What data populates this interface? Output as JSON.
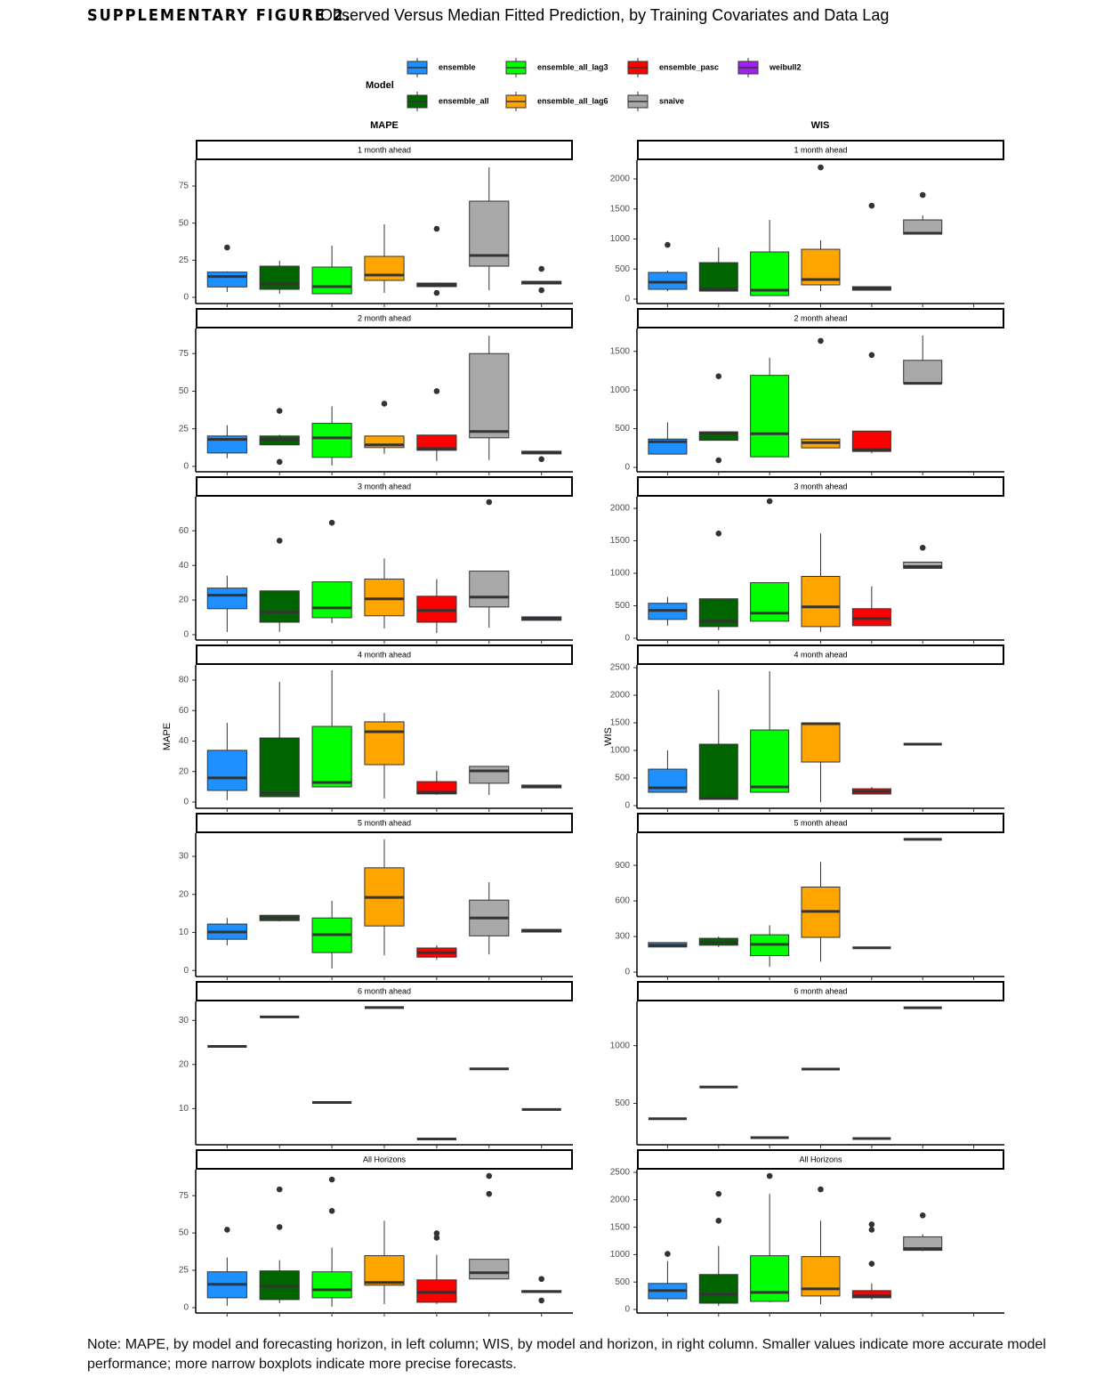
{
  "header": {
    "label": "SUPPLEMENTARY FIGURE 2.",
    "title": "Observed Versus Median Fitted Prediction, by Training Covariates and Data Lag"
  },
  "legend_title": "Model",
  "models": [
    {
      "name": "ensemble",
      "color": "#1e90ff"
    },
    {
      "name": "ensemble_all",
      "color": "#006400"
    },
    {
      "name": "ensemble_all_lag3",
      "color": "#00ff00"
    },
    {
      "name": "ensemble_all_lag6",
      "color": "#ffa500"
    },
    {
      "name": "ensemble_pasc",
      "color": "#ff0000"
    },
    {
      "name": "snaive",
      "color": "#a9a9a9"
    },
    {
      "name": "weibull2",
      "color": "#a020f0"
    }
  ],
  "column_titles": [
    "MAPE",
    "WIS"
  ],
  "chart_data": [
    {
      "type": "box",
      "title": "1 month ahead",
      "ylim": [
        -4.2,
        92.4
      ],
      "yticks": [
        0,
        25,
        50,
        75
      ],
      "boxes": [
        [
          3.6,
          7,
          14,
          17,
          17.5
        ],
        [
          2.4,
          5.4,
          9,
          21,
          24.6
        ],
        [
          2.4,
          2.4,
          7.2,
          20.4,
          34.8
        ],
        [
          3,
          11.4,
          15,
          27.6,
          49.2
        ],
        [
          7,
          7.2,
          8.4,
          9.6,
          10
        ],
        [
          4.8,
          21,
          28.2,
          64.8,
          87.6
        ],
        [
          9,
          9,
          10.2,
          10.8,
          10.8
        ]
      ],
      "outliers": [
        [
          33.6
        ],
        [],
        [],
        [],
        [
          46.2,
          3
        ],
        [],
        [
          19.2,
          4.8
        ]
      ]
    },
    {
      "type": "box",
      "title": "1 month ahead",
      "ylim": [
        -74,
        2311
      ],
      "yticks": [
        0,
        500,
        1000,
        1500,
        2000
      ],
      "boxes": [
        [
          133,
          163,
          281,
          444,
          474
        ],
        [
          133,
          133,
          163,
          607,
          859
        ],
        [
          59,
          59,
          148,
          785,
          1318
        ],
        [
          133,
          237,
          326,
          829,
          977
        ],
        [
          148,
          148,
          178,
          207,
          207
        ],
        [
          1081,
          1081,
          1096,
          1318,
          1392
        ],
        null
      ],
      "outliers": [
        [
          903
        ],
        [],
        [],
        [
          2192
        ],
        [
          1555
        ],
        [
          1733
        ],
        []
      ]
    },
    {
      "type": "box",
      "title": "2 month ahead",
      "ylim": [
        -3.6,
        91.7
      ],
      "yticks": [
        0,
        25,
        50,
        75
      ],
      "boxes": [
        [
          5.4,
          8.9,
          17.9,
          20.2,
          27.4
        ],
        [
          14.3,
          14.3,
          17.9,
          20.2,
          21
        ],
        [
          0.6,
          6,
          19,
          28.6,
          39.9
        ],
        [
          8.3,
          12.5,
          14.3,
          20.2,
          20.2
        ],
        [
          3.6,
          10.7,
          11.9,
          20.8,
          20.8
        ],
        [
          4.2,
          19,
          23.2,
          75,
          86.9
        ],
        [
          8.3,
          8.3,
          9.5,
          10,
          10
        ]
      ],
      "outliers": [
        [],
        [
          36.9,
          3
        ],
        [],
        [
          41.7
        ],
        [
          50
        ],
        [],
        [
          4.8
        ]
      ]
    },
    {
      "type": "box",
      "title": "2 month ahead",
      "ylim": [
        -57,
        1796
      ],
      "yticks": [
        0,
        500,
        1000,
        1500
      ],
      "boxes": [
        [
          172,
          172,
          332,
          366,
          583
        ],
        [
          350,
          350,
          440,
          460,
          460
        ],
        [
          137,
          137,
          435,
          1190,
          1419
        ],
        [
          252,
          252,
          320,
          366,
          366
        ],
        [
          183,
          206,
          229,
          469,
          469
        ],
        [
          1087,
          1087,
          1087,
          1384,
          1705
        ],
        null
      ],
      "outliers": [
        [],
        [
          1178,
          92
        ],
        [],
        [
          1636
        ],
        [
          1453
        ],
        [],
        []
      ]
    },
    {
      "type": "box",
      "title": "3 month ahead",
      "ylim": [
        -3.1,
        79.7
      ],
      "yticks": [
        0,
        20,
        40,
        60
      ],
      "boxes": [
        [
          1.6,
          15,
          22.8,
          26.9,
          34.1
        ],
        [
          1.6,
          7.2,
          12.9,
          25.3,
          25.3
        ],
        [
          6.7,
          9.8,
          15.5,
          30.5,
          30.5
        ],
        [
          3.6,
          10.9,
          20.7,
          32.1,
          44
        ],
        [
          1,
          7.2,
          14,
          22.2,
          32.1
        ],
        [
          4.1,
          16,
          21.7,
          36.7,
          36.7
        ],
        [
          8.3,
          8.3,
          9.3,
          10.3,
          10.3
        ]
      ],
      "outliers": [
        [],
        [
          54.3
        ],
        [
          64.7
        ],
        [],
        [],
        [
          76.6
        ],
        []
      ]
    },
    {
      "type": "box",
      "title": "3 month ahead",
      "ylim": [
        -28,
        2179
      ],
      "yticks": [
        0,
        500,
        1000,
        1500,
        2000
      ],
      "boxes": [
        [
          193,
          290,
          427,
          538,
          634
        ],
        [
          124,
          179,
          262,
          607,
          607
        ],
        [
          262,
          262,
          386,
          855,
          855
        ],
        [
          97,
          179,
          483,
          952,
          1613
        ],
        [
          193,
          193,
          303,
          455,
          800
        ],
        [
          1076,
          1076,
          1103,
          1172,
          1172
        ],
        null
      ],
      "outliers": [
        [],
        [
          1613
        ],
        [
          2110
        ],
        [],
        [],
        [
          1393
        ],
        []
      ]
    },
    {
      "type": "box",
      "title": "4 month ahead",
      "ylabel": "MAPE",
      "ylim": [
        -4.1,
        89.9
      ],
      "yticks": [
        0,
        20,
        40,
        60,
        80
      ],
      "boxes": [
        [
          1.2,
          7.6,
          15.8,
          33.9,
          52
        ],
        [
          3.5,
          3.5,
          5.8,
          42,
          78.8
        ],
        [
          9.9,
          9.9,
          12.8,
          49.6,
          86.4
        ],
        [
          2.3,
          24.5,
          46.1,
          52.6,
          58.4
        ],
        [
          4.7,
          5.3,
          6.4,
          13.4,
          20.4
        ],
        [
          4.7,
          12.3,
          20.4,
          23.4,
          23.4
        ],
        [
          9.3,
          9.3,
          9.9,
          11.1,
          11.1
        ]
      ],
      "outliers": [
        [],
        [],
        [],
        [],
        [],
        [],
        []
      ]
    },
    {
      "type": "box",
      "title": "4 month ahead",
      "ylabel": "WIS",
      "ylim": [
        -48,
        2549
      ],
      "yticks": [
        0,
        500,
        1000,
        1500,
        2000,
        2500
      ],
      "boxes": [
        [
          242,
          242,
          323,
          661,
          1000
        ],
        [
          113,
          113,
          129,
          1113,
          2097
        ],
        [
          242,
          242,
          339,
          1371,
          2436
        ],
        [
          65,
          790,
          1484,
          1500,
          1500
        ],
        [
          210,
          210,
          258,
          306,
          339
        ],
        [
          1113,
          1113,
          1113,
          1113,
          1113
        ],
        null
      ],
      "outliers": [
        [],
        [],
        [],
        [],
        [],
        [],
        []
      ]
    },
    {
      "type": "box",
      "title": "5 month ahead",
      "ylim": [
        -1.6,
        36.1
      ],
      "yticks": [
        0,
        10,
        20,
        30
      ],
      "boxes": [
        [
          6.6,
          8.2,
          10.1,
          12.2,
          13.8
        ],
        [
          12.9,
          13.1,
          13.8,
          14.5,
          14.5
        ],
        [
          0.5,
          4.7,
          9.4,
          13.8,
          18.3
        ],
        [
          4,
          11.7,
          19.2,
          27,
          34.5
        ],
        [
          2.8,
          3.5,
          4.7,
          5.9,
          6.6
        ],
        [
          4.2,
          9.1,
          13.8,
          18.5,
          23.2
        ],
        [
          10.1,
          10.1,
          10.5,
          10.8,
          10.8
        ]
      ],
      "outliers": [
        [],
        [],
        [],
        [],
        [],
        [],
        []
      ]
    },
    {
      "type": "box",
      "title": "5 month ahead",
      "ylim": [
        -37,
        1171
      ],
      "yticks": [
        0,
        300,
        600,
        900
      ],
      "boxes": [
        [
          212,
          212,
          227,
          249,
          249
        ],
        [
          212,
          227,
          249,
          285,
          300
        ],
        [
          44,
          139,
          234,
          315,
          395
        ],
        [
          88,
          293,
          512,
          717,
          929
        ],
        [
          205,
          205,
          205,
          205,
          205
        ],
        [
          1119,
          1119,
          1119,
          1119,
          1119
        ],
        null
      ],
      "outliers": [
        [],
        [],
        [],
        [],
        [],
        [],
        []
      ]
    },
    {
      "type": "box",
      "title": "6 month ahead",
      "ylim": [
        1.8,
        34.3
      ],
      "yticks": [
        10,
        20,
        30
      ],
      "boxes": [
        [
          24.1,
          24.1,
          24.1,
          24.1,
          24.1
        ],
        [
          30.8,
          30.8,
          30.8,
          30.8,
          30.8
        ],
        [
          11.4,
          11.4,
          11.4,
          11.4,
          11.4
        ],
        [
          32.9,
          32.9,
          32.9,
          32.9,
          32.9
        ],
        [
          3.1,
          3.1,
          3.1,
          3.1,
          3.1
        ],
        [
          19,
          19,
          19,
          19,
          19
        ],
        [
          9.8,
          9.8,
          9.8,
          9.8,
          9.8
        ]
      ],
      "outliers": [
        [],
        [],
        [],
        [],
        [],
        [],
        []
      ]
    },
    {
      "type": "box",
      "title": "6 month ahead",
      "ylim": [
        141,
        1383
      ],
      "yticks": [
        500,
        1000
      ],
      "boxes": [
        [
          367,
          367,
          367,
          367,
          367
        ],
        [
          641,
          641,
          641,
          641,
          641
        ],
        [
          203,
          203,
          203,
          203,
          203
        ],
        [
          797,
          797,
          797,
          797,
          797
        ],
        [
          195,
          195,
          195,
          195,
          195
        ],
        [
          1328,
          1328,
          1328,
          1328,
          1328
        ],
        null
      ],
      "outliers": [
        [],
        [],
        [],
        [],
        [],
        [],
        []
      ]
    },
    {
      "type": "box",
      "title": "All Horizons",
      "ylim": [
        -3.6,
        92.4
      ],
      "yticks": [
        0,
        25,
        50,
        75
      ],
      "boxes": [
        [
          1.2,
          6.6,
          15.6,
          24,
          33.6
        ],
        [
          3,
          5.4,
          14.4,
          24.6,
          31.8
        ],
        [
          0.6,
          6.6,
          12,
          24,
          40.2
        ],
        [
          2.4,
          15,
          16.8,
          34.8,
          58.2
        ],
        [
          2.4,
          3.6,
          10.2,
          18.6,
          35.4
        ],
        [
          19.2,
          19.2,
          23.4,
          32.4,
          32.4
        ],
        [
          10.2,
          10.2,
          10.8,
          11.4,
          11.4
        ]
      ],
      "outliers": [
        [
          52.2
        ],
        [
          79.2,
          54
        ],
        [
          85.8,
          64.8
        ],
        [],
        [
          49.8,
          46.8
        ],
        [
          88.2,
          76.2
        ],
        [
          19.2,
          4.8
        ]
      ]
    },
    {
      "type": "box",
      "title": "All Horizons",
      "ylim": [
        -65,
        2549
      ],
      "yticks": [
        0,
        500,
        1000,
        1500,
        2000,
        2500
      ],
      "boxes": [
        [
          147,
          196,
          343,
          474,
          882
        ],
        [
          65,
          114,
          278,
          637,
          1160
        ],
        [
          131,
          147,
          310,
          980,
          2108
        ],
        [
          98,
          245,
          376,
          964,
          1618
        ],
        [
          180,
          212,
          245,
          343,
          474
        ],
        [
          1062,
          1078,
          1111,
          1324,
          1373
        ],
        null
      ],
      "outliers": [
        [
          1013
        ],
        [
          2108,
          1618
        ],
        [
          2435
        ],
        [
          2190
        ],
        [
          1552,
          1454,
          833
        ],
        [
          1716
        ],
        []
      ]
    }
  ],
  "note": "Note: MAPE, by model and forecasting horizon, in left column; WIS, by model and horizon, in right column. Smaller values indicate more accurate model performance; more narrow boxplots indicate more precise forecasts."
}
